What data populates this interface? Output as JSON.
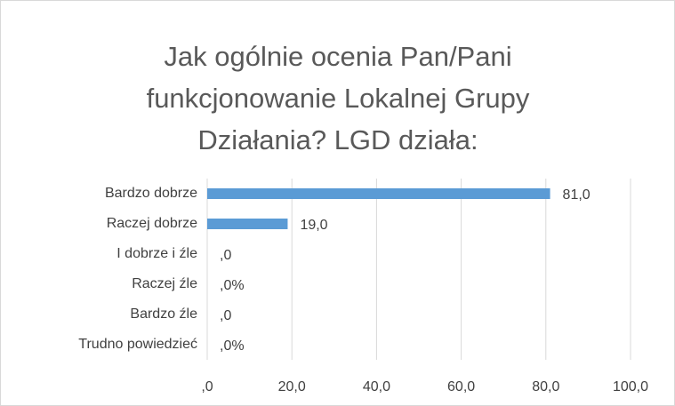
{
  "chart_data": {
    "type": "hbar",
    "title": "Jak ogólnie ocenia Pan/Pani funkcjonowanie Lokalnej Grupy Działania? LGD działa:",
    "categories": [
      "Bardzo dobrze",
      "Raczej dobrze",
      "I dobrze i źle",
      "Raczej źle",
      "Bardzo źle",
      "Trudno powiedzieć"
    ],
    "values": [
      81,
      19,
      0,
      0,
      0,
      0
    ],
    "value_labels": [
      "81,0",
      "19,0",
      ",0",
      ",0%",
      ",0",
      ",0%"
    ],
    "color": "#5b9bd5",
    "xlim": [
      0,
      100
    ],
    "xticks": [
      {
        "value": 0,
        "label": ",0"
      },
      {
        "value": 20,
        "label": "20,0"
      },
      {
        "value": 40,
        "label": "40,0"
      },
      {
        "value": 60,
        "label": "60,0"
      },
      {
        "value": 80,
        "label": "80,0"
      },
      {
        "value": 100,
        "label": "100,0"
      }
    ],
    "grid": true
  }
}
